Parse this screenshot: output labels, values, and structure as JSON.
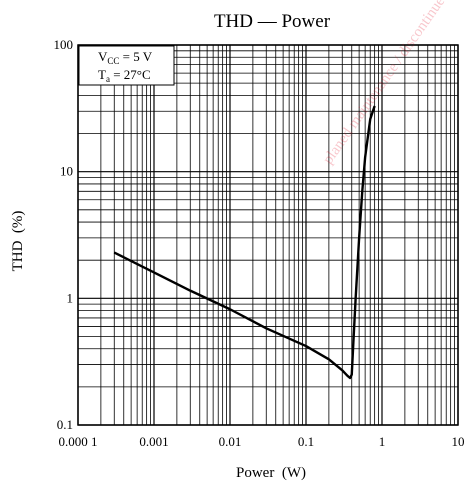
{
  "chart_data": {
    "type": "line",
    "title": "THD — Power",
    "xlabel": "Power  (W)",
    "ylabel": "THD  (%)",
    "xscale": "log",
    "yscale": "log",
    "xlim": [
      0.0001,
      10
    ],
    "ylim": [
      0.1,
      100
    ],
    "grid": true,
    "x_ticks": [
      0.0001,
      0.001,
      0.01,
      0.1,
      1,
      10
    ],
    "x_tick_labels": [
      "0.000 1",
      "0.001",
      "0.01",
      "0.1",
      "1",
      "10"
    ],
    "y_ticks": [
      0.1,
      1,
      10,
      100
    ],
    "y_tick_labels": [
      "0.1",
      "1",
      "10",
      "100"
    ],
    "conditions": {
      "vcc": {
        "main": "V",
        "sub": "CC",
        "rest": " = 5 V"
      },
      "ta": {
        "main": "T",
        "sub": "a",
        "rest": " = 27°C"
      }
    },
    "watermark": "planed maintenance / discontinued",
    "series": [
      {
        "x": [
          0.0003,
          0.001,
          0.003,
          0.01,
          0.03,
          0.1,
          0.2,
          0.3,
          0.35,
          0.38,
          0.4,
          0.42,
          0.45,
          0.5,
          0.55,
          0.6,
          0.7,
          0.8
        ],
        "y": [
          2.3,
          1.6,
          1.15,
          0.82,
          0.58,
          0.42,
          0.33,
          0.27,
          0.245,
          0.235,
          0.25,
          0.45,
          1.0,
          3.0,
          7.0,
          13,
          26,
          33
        ]
      }
    ]
  }
}
